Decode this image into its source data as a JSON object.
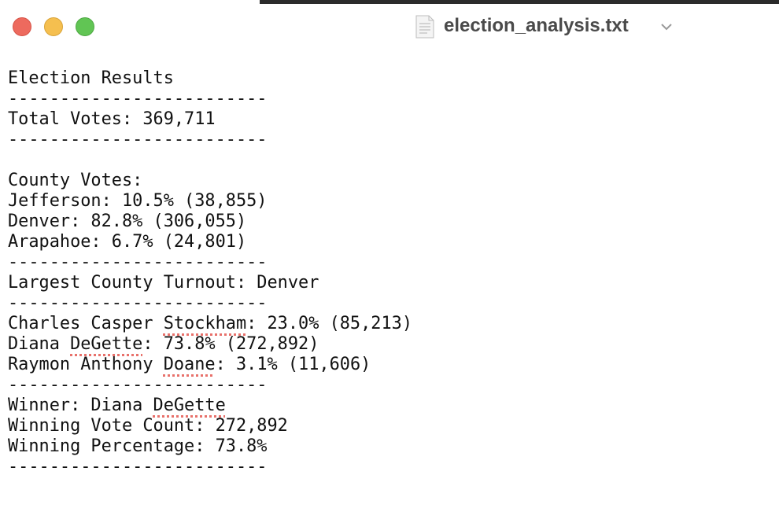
{
  "window": {
    "title": "election_analysis.txt"
  },
  "document": {
    "lines": [
      "Election Results",
      "-------------------------",
      "Total Votes: 369,711",
      "-------------------------",
      "County Votes:",
      "Jefferson: 10.5% (38,855)",
      "Denver: 82.8% (306,055)",
      "Arapahoe: 6.7% (24,801)",
      "-------------------------",
      "Largest County Turnout: Denver",
      "-------------------------",
      [
        "Charles Casper ",
        "Stockham",
        ": 23.0% (85,213)"
      ],
      [
        "Diana ",
        "DeGette",
        ": 73.8% (272,892)"
      ],
      [
        "Raymon Anthony ",
        "Doane",
        ": 3.1% (11,606)"
      ],
      "-------------------------",
      [
        "Winner: Diana ",
        "DeGette"
      ],
      "Winning Vote Count: 272,892",
      "Winning Percentage: 73.8%",
      "-------------------------"
    ]
  }
}
